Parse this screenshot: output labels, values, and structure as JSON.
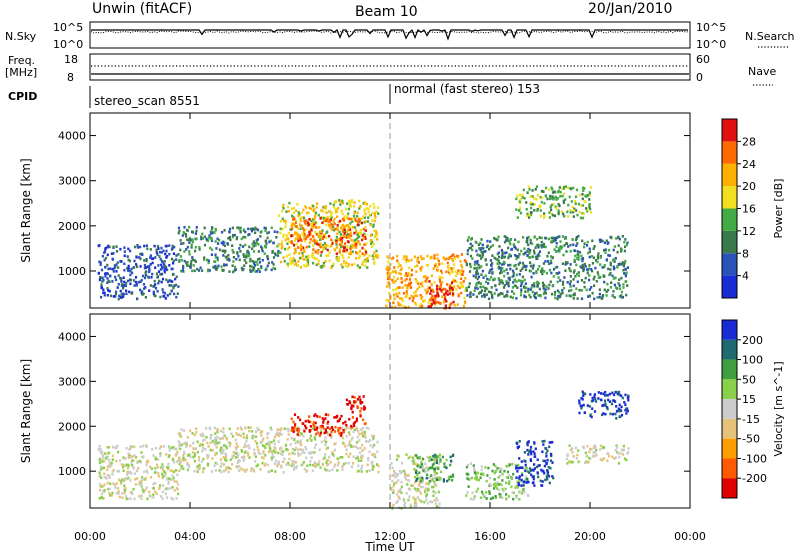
{
  "header": {
    "station": "Unwin (fitACF)",
    "beam": "Beam 10",
    "date": "20/Jan/2010"
  },
  "summary": {
    "nsky_label": "N.Sky",
    "nsky_top": "10^5",
    "nsky_bottom": "10^0",
    "nsearch_label": "N.Search",
    "nsearch_top": "10^5",
    "nsearch_bottom": "10^0",
    "freq_label_1": "Freq.",
    "freq_label_2": "[MHz]",
    "freq_top": "18",
    "freq_bottom": "8",
    "nave_label": "Nave",
    "nave_top": "60",
    "nave_bottom": "0",
    "cpid_label": "CPID",
    "cpid_1": "stereo_scan 8551",
    "cpid_2": "normal (fast stereo) 153"
  },
  "colors": {
    "power_scale": [
      "#1a2bd6",
      "#2a52b8",
      "#3a7a4a",
      "#44aa44",
      "#f0e020",
      "#ffb000",
      "#ff6a00",
      "#e01010"
    ],
    "velocity_scale": [
      "#1a2bd6",
      "#1f6a70",
      "#40a040",
      "#8ad04a",
      "#cccccc",
      "#e6c27a",
      "#ff9d00",
      "#ff5a00",
      "#e00000"
    ]
  },
  "chart_data": [
    {
      "type": "heatmap",
      "title": "Power",
      "xlabel": "",
      "ylabel": "Slant Range [km]",
      "xlim": [
        0,
        24
      ],
      "ylim": [
        180,
        4500
      ],
      "x_ticks": [
        "00:00",
        "04:00",
        "08:00",
        "12:00",
        "16:00",
        "20:00",
        "00:00"
      ],
      "y_ticks": [
        "1000",
        "2000",
        "3000",
        "4000"
      ],
      "colorbar": {
        "label": "Power [dB]",
        "ticks": [
          "4",
          "8",
          "12",
          "16",
          "20",
          "24",
          "28"
        ]
      },
      "echo_regions": [
        {
          "t0": 0.3,
          "t1": 3.5,
          "r0": 400,
          "r1": 1600,
          "level": 1
        },
        {
          "t0": 3.5,
          "t1": 7.5,
          "r0": 1000,
          "r1": 2000,
          "level": 2
        },
        {
          "t0": 7.5,
          "t1": 11.5,
          "r0": 1100,
          "r1": 2600,
          "level": 4
        },
        {
          "t0": 8.0,
          "t1": 11.0,
          "r0": 1400,
          "r1": 2200,
          "level": 6
        },
        {
          "t0": 11.8,
          "t1": 15.0,
          "r0": 200,
          "r1": 1400,
          "level": 5
        },
        {
          "t0": 13.5,
          "t1": 14.5,
          "r0": 200,
          "r1": 800,
          "level": 7
        },
        {
          "t0": 15.0,
          "t1": 21.5,
          "r0": 400,
          "r1": 1800,
          "level": 2
        },
        {
          "t0": 17.0,
          "t1": 20.0,
          "r0": 2200,
          "r1": 2900,
          "level": 3
        }
      ]
    },
    {
      "type": "heatmap",
      "title": "Velocity",
      "xlabel": "Time UT",
      "ylabel": "Slant Range [km]",
      "xlim": [
        0,
        24
      ],
      "ylim": [
        180,
        4500
      ],
      "x_ticks": [
        "00:00",
        "04:00",
        "08:00",
        "12:00",
        "16:00",
        "20:00",
        "00:00"
      ],
      "y_ticks": [
        "1000",
        "2000",
        "3000",
        "4000"
      ],
      "colorbar": {
        "label": "Velocity [m s^-1]",
        "ticks": [
          "200",
          "100",
          "50",
          "15",
          "-15",
          "-50",
          "-100",
          "-200"
        ]
      },
      "echo_regions": [
        {
          "t0": 0.3,
          "t1": 3.5,
          "r0": 400,
          "r1": 1600,
          "level": 4
        },
        {
          "t0": 3.5,
          "t1": 11.5,
          "r0": 1000,
          "r1": 2000,
          "level": 4
        },
        {
          "t0": 8.0,
          "t1": 10.2,
          "r0": 1800,
          "r1": 2300,
          "level": 8
        },
        {
          "t0": 10.2,
          "t1": 11.0,
          "r0": 2000,
          "r1": 2700,
          "level": 8
        },
        {
          "t0": 12.0,
          "t1": 14.0,
          "r0": 200,
          "r1": 1400,
          "level": 4
        },
        {
          "t0": 13.0,
          "t1": 14.5,
          "r0": 800,
          "r1": 1400,
          "level": 2
        },
        {
          "t0": 15.0,
          "t1": 17.5,
          "r0": 400,
          "r1": 1200,
          "level": 3
        },
        {
          "t0": 17.0,
          "t1": 18.5,
          "r0": 700,
          "r1": 1700,
          "level": 0
        },
        {
          "t0": 19.0,
          "t1": 21.5,
          "r0": 1200,
          "r1": 1600,
          "level": 4
        },
        {
          "t0": 19.5,
          "t1": 21.5,
          "r0": 2200,
          "r1": 2800,
          "level": 0
        }
      ]
    }
  ]
}
